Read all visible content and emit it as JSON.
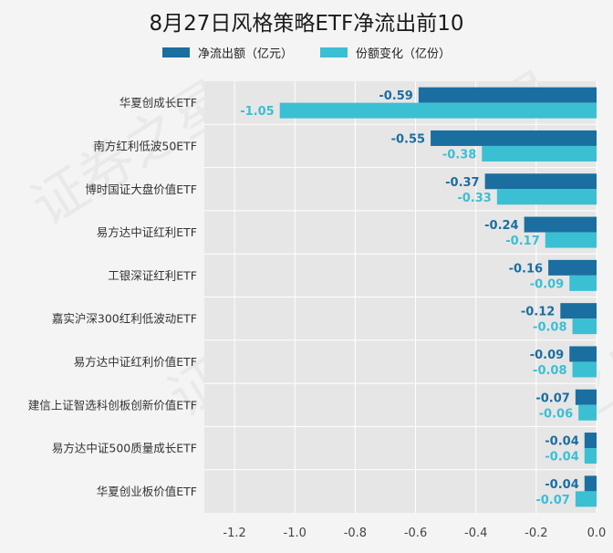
{
  "watermark": "证券之星",
  "colors": {
    "netflow": "#1b6ea0",
    "share": "#3bbfd3",
    "plot_bg": "#e6e6e6",
    "grid": "#ffffff"
  },
  "chart_data": {
    "type": "bar",
    "orientation": "horizontal",
    "title": "8月27日风格策略ETF净流出前10",
    "xlabel": "",
    "ylabel": "",
    "xlim": [
      -1.3,
      0
    ],
    "xticks": [
      "-1.2",
      "-1.0",
      "-0.8",
      "-0.6",
      "-0.4",
      "-0.2",
      "0.0"
    ],
    "xtick_values": [
      -1.2,
      -1.0,
      -0.8,
      -0.6,
      -0.4,
      -0.2,
      0.0
    ],
    "grid": true,
    "legend_position": "top",
    "categories": [
      "华夏创成长ETF",
      "南方红利低波50ETF",
      "博时国证大盘价值ETF",
      "易方达中证红利ETF",
      "工银深证红利ETF",
      "嘉实沪深300红利低波动ETF",
      "易方达中证红利价值ETF",
      "建信上证智选科创板创新价值ETF",
      "易方达中证500质量成长ETF",
      "华夏创业板价值ETF"
    ],
    "series": [
      {
        "name": "净流出额（亿元）",
        "values": [
          -0.59,
          -0.55,
          -0.37,
          -0.24,
          -0.16,
          -0.12,
          -0.09,
          -0.07,
          -0.04,
          -0.04
        ],
        "labels": [
          "-0.59",
          "-0.55",
          "-0.37",
          "-0.24",
          "-0.16",
          "-0.12",
          "-0.09",
          "-0.07",
          "-0.04",
          "-0.04"
        ]
      },
      {
        "name": "份额变化（亿份）",
        "values": [
          -1.05,
          -0.38,
          -0.33,
          -0.17,
          -0.09,
          -0.08,
          -0.08,
          -0.06,
          -0.04,
          -0.07
        ],
        "labels": [
          "-1.05",
          "-0.38",
          "-0.33",
          "-0.17",
          "-0.09",
          "-0.08",
          "-0.08",
          "-0.06",
          "-0.04",
          "-0.07"
        ]
      }
    ]
  }
}
